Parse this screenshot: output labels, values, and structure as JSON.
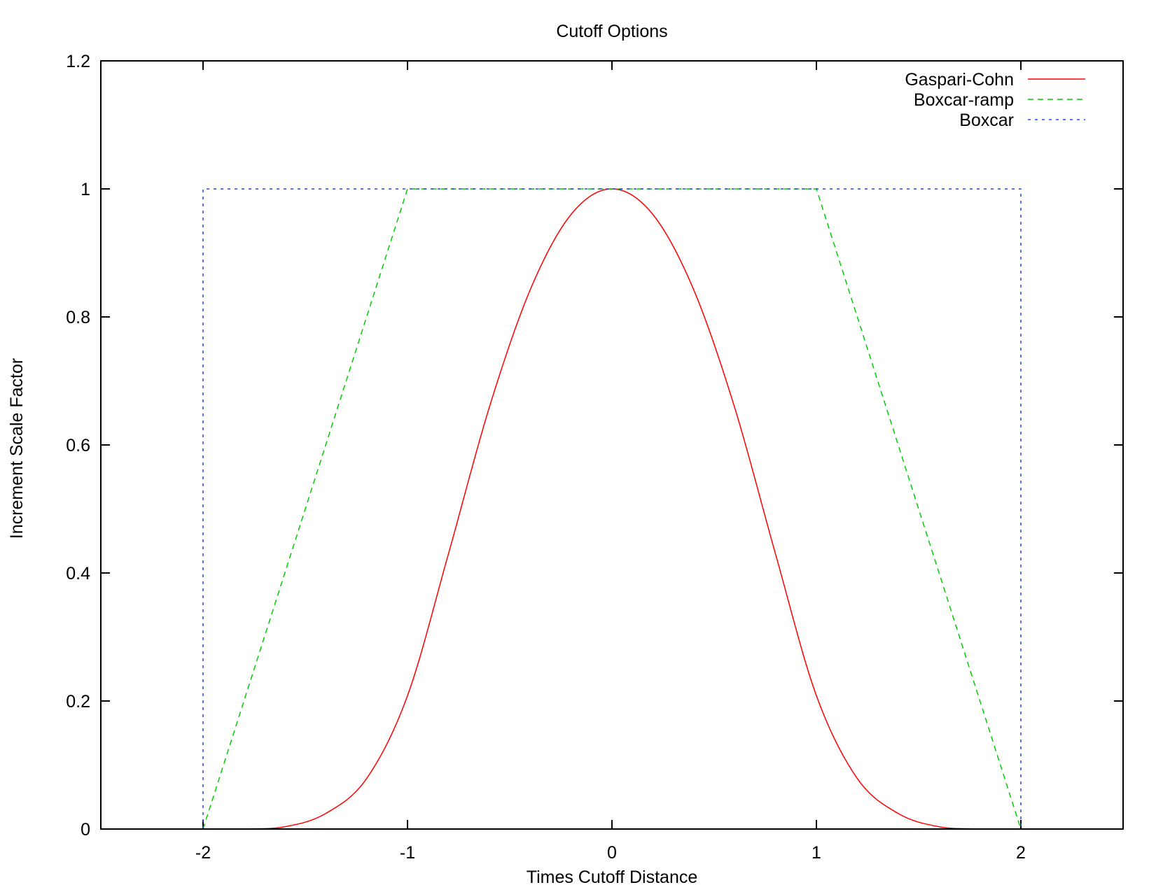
{
  "chart_data": {
    "type": "line",
    "title": "Cutoff Options",
    "xlabel": "Times Cutoff Distance",
    "ylabel": "Increment Scale Factor",
    "xlim": [
      -2.5,
      2.5
    ],
    "ylim": [
      0,
      1.2
    ],
    "xticks": [
      "-2",
      "-1",
      "0",
      "1",
      "2"
    ],
    "yticks": [
      "0",
      "0.2",
      "0.4",
      "0.6",
      "0.8",
      "1",
      "1.2"
    ],
    "grid": false,
    "legend_position": "top-right",
    "series": [
      {
        "name": "Gaspari-Cohn",
        "color": "#ff0000",
        "dash": "solid",
        "x": [
          -2.0,
          -1.8,
          -1.6,
          -1.4,
          -1.2,
          -1.0,
          -0.8,
          -0.6,
          -0.4,
          -0.2,
          0.0,
          0.2,
          0.4,
          0.6,
          0.8,
          1.0,
          1.2,
          1.4,
          1.6,
          1.8,
          2.0
        ],
        "y": [
          0.0,
          0.0002,
          0.0036,
          0.0243,
          0.0789,
          0.2083,
          0.4296,
          0.6586,
          0.8423,
          0.9601,
          1.0,
          0.9601,
          0.8423,
          0.6586,
          0.4296,
          0.2083,
          0.0789,
          0.0243,
          0.0036,
          0.0002,
          0.0
        ]
      },
      {
        "name": "Boxcar-ramp",
        "color": "#00cc00",
        "dash": "dashed",
        "x": [
          -2,
          -1,
          1,
          2
        ],
        "y": [
          0,
          1,
          1,
          0
        ]
      },
      {
        "name": "Boxcar",
        "color": "#2244ff",
        "dash": "dotted",
        "x": [
          -2,
          -2,
          2,
          2
        ],
        "y": [
          0,
          1,
          1,
          0
        ]
      }
    ]
  }
}
